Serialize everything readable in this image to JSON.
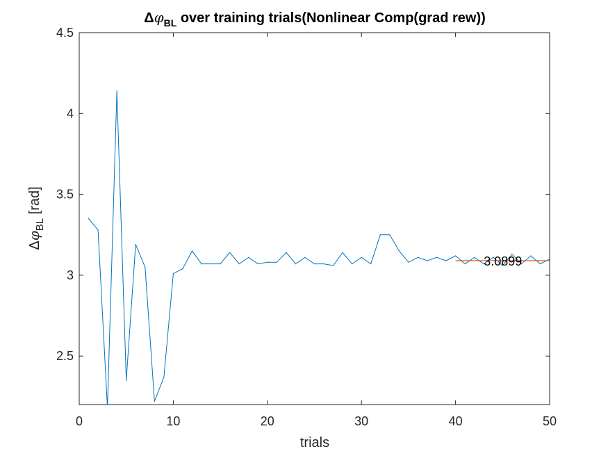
{
  "chart_data": {
    "type": "line",
    "title_parts": {
      "pre": "Δ",
      "phi": "φ",
      "sub": "BL",
      "post": " over training trials(Nonlinear Comp(grad rew))"
    },
    "xlabel": "trials",
    "ylabel_parts": {
      "pre": "Δ",
      "phi": "φ",
      "sub": "BL",
      "post": " [rad]"
    },
    "xlim": [
      0,
      50
    ],
    "ylim": [
      2.2,
      4.5
    ],
    "xticks": [
      "0",
      "10",
      "20",
      "30",
      "40",
      "50"
    ],
    "yticks": [
      "2.5",
      "3",
      "3.5",
      "4",
      "4.5"
    ],
    "grid": false,
    "series": [
      {
        "color": "#0072BD",
        "x": [
          1,
          2,
          3,
          4,
          5,
          6,
          7,
          8,
          9,
          10,
          11,
          12,
          13,
          14,
          15,
          16,
          17,
          18,
          19,
          20,
          21,
          22,
          23,
          24,
          25,
          26,
          27,
          28,
          29,
          30,
          31,
          32,
          33,
          34,
          35,
          36,
          37,
          38,
          39,
          40,
          41,
          42,
          43,
          44,
          45,
          46,
          47,
          48,
          49,
          50
        ],
        "y": [
          3.35,
          3.28,
          2.18,
          4.14,
          2.35,
          3.19,
          3.05,
          2.22,
          2.37,
          3.01,
          3.04,
          3.15,
          3.07,
          3.07,
          3.07,
          3.14,
          3.07,
          3.11,
          3.07,
          3.08,
          3.08,
          3.14,
          3.07,
          3.11,
          3.07,
          3.07,
          3.06,
          3.14,
          3.07,
          3.11,
          3.07,
          3.25,
          3.25,
          3.15,
          3.08,
          3.11,
          3.09,
          3.11,
          3.09,
          3.12,
          3.07,
          3.11,
          3.07,
          3.11,
          3.06,
          3.13,
          3.07,
          3.12,
          3.07,
          3.1
        ]
      }
    ],
    "reference_line": {
      "color": "#D95319",
      "value": 3.0899,
      "x_from": 40,
      "x_to": 50
    },
    "annotation": {
      "text": "3.0899",
      "x": 43,
      "y": 3.0899
    }
  }
}
